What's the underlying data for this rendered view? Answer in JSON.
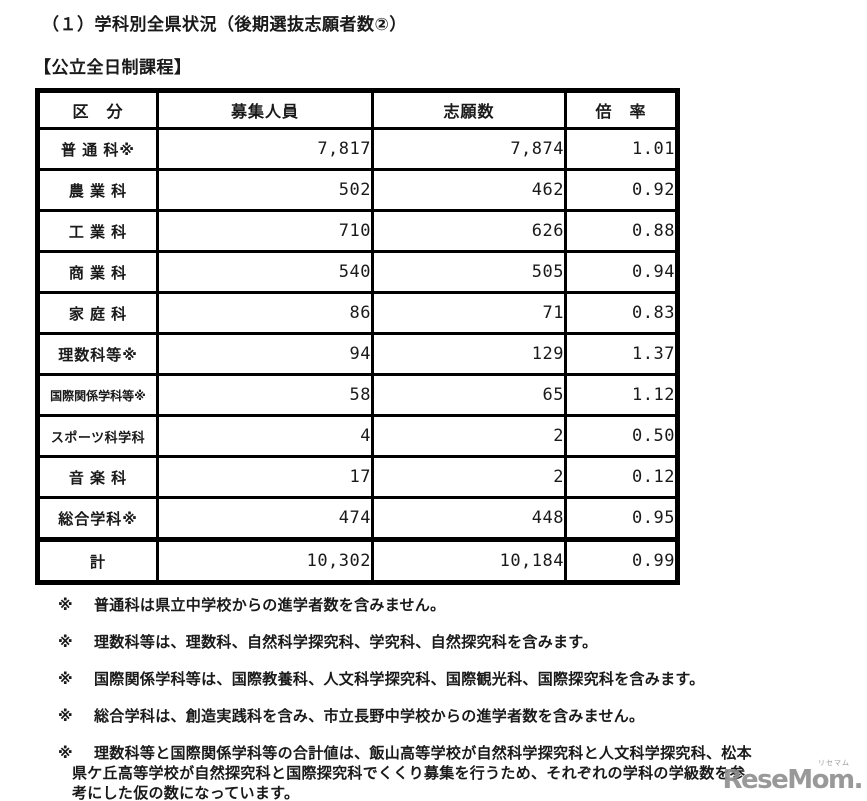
{
  "page": {
    "title": "（１）学科別全県状況（後期選抜志願者数②）",
    "section_heading": "【公立全日制課程】"
  },
  "table": {
    "columns": {
      "category": "区　分",
      "capacity": "募集人員",
      "applicants": "志願数",
      "ratio": "倍　率"
    },
    "rows": [
      {
        "category": "普 通 科※",
        "capacity": "7,817",
        "applicants": "7,874",
        "ratio": "1.01"
      },
      {
        "category": "農 業 科",
        "capacity": "502",
        "applicants": "462",
        "ratio": "0.92"
      },
      {
        "category": "工 業 科",
        "capacity": "710",
        "applicants": "626",
        "ratio": "0.88"
      },
      {
        "category": "商 業 科",
        "capacity": "540",
        "applicants": "505",
        "ratio": "0.94"
      },
      {
        "category": "家 庭 科",
        "capacity": "86",
        "applicants": "71",
        "ratio": "0.83"
      },
      {
        "category": "理数科等※",
        "capacity": "94",
        "applicants": "129",
        "ratio": "1.37"
      },
      {
        "category": "国際関係学科等※",
        "capacity": "58",
        "applicants": "65",
        "ratio": "1.12"
      },
      {
        "category": "スポーツ科学科",
        "capacity": "4",
        "applicants": "2",
        "ratio": "0.50"
      },
      {
        "category": "音 楽 科",
        "capacity": "17",
        "applicants": "2",
        "ratio": "0.12"
      },
      {
        "category": "総合学科※",
        "capacity": "474",
        "applicants": "448",
        "ratio": "0.95"
      },
      {
        "category": "計",
        "capacity": "10,302",
        "applicants": "10,184",
        "ratio": "0.99"
      }
    ]
  },
  "footnotes": [
    {
      "marker": "※",
      "text": "普通科は県立中学校からの進学者数を含みません。"
    },
    {
      "marker": "※",
      "text": "理数科等は、理数科、自然科学探究科、学究科、自然探究科を含みます。"
    },
    {
      "marker": "※",
      "text": "国際関係学科等は、国際教養科、人文科学探究科、国際観光科、国際探究科を含みます。"
    },
    {
      "marker": "※",
      "text": "総合学科は、創造実践科を含み、市立長野中学校からの進学者数を含みません。"
    },
    {
      "marker": "※",
      "text": "理数科等と国際関係学科等の合計値は、飯山高等学校が自然科学探究科と人文科学探究科、松本\n県ケ丘高等学校が自然探究科と国際探究科でくくり募集を行うため、それぞれの学科の学級数を参\n考にした仮の数になっています。"
    }
  ],
  "watermark": {
    "text": "ReseMom.",
    "ruby": "リセマム",
    "color": "#8f8f8f"
  }
}
